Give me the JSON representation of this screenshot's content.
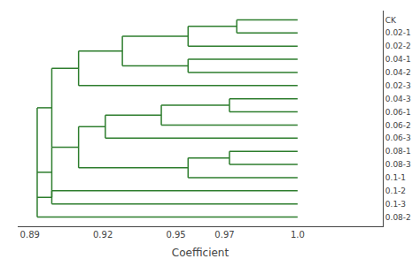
{
  "chart_data": {
    "type": "dendrogram",
    "x_label": "Coefficient",
    "color": "#2d7d2d",
    "grid": false,
    "xlim": [
      0.885,
      1.035
    ],
    "xticks": [
      0.89,
      0.92,
      0.95,
      0.97,
      {
        "value": 1.0,
        "label": "1.0"
      }
    ],
    "ylim": [
      0.3,
      16.7
    ],
    "yticks": [
      {
        "value": 16,
        "label": "CK"
      },
      {
        "value": 15,
        "label": "0.02-1"
      },
      {
        "value": 14,
        "label": "0.02-2"
      },
      {
        "value": 13,
        "label": "0.04-1"
      },
      {
        "value": 12,
        "label": "0.04-2"
      },
      {
        "value": 11,
        "label": "0.02-3"
      },
      {
        "value": 10,
        "label": "0.04-3"
      },
      {
        "value": 9,
        "label": "0.06-1"
      },
      {
        "value": 8,
        "label": "0.06-2"
      },
      {
        "value": 7,
        "label": "0.06-3"
      },
      {
        "value": 6,
        "label": "0.08-1"
      },
      {
        "value": 5,
        "label": "0.08-3"
      },
      {
        "value": 4,
        "label": "0.1-1"
      },
      {
        "value": 3,
        "label": "0.1-2"
      },
      {
        "value": 2,
        "label": "0.1-3"
      },
      {
        "value": 1,
        "label": "0.08-2"
      }
    ],
    "segments": [
      {
        "x1": 1.0,
        "y1": 16,
        "x2": 0.975,
        "y2": 16
      },
      {
        "x1": 1.0,
        "y1": 15,
        "x2": 0.975,
        "y2": 15
      },
      {
        "x1": 0.975,
        "y1": 16,
        "x2": 0.975,
        "y2": 15
      },
      {
        "x1": 0.975,
        "y1": 15.5,
        "x2": 0.955,
        "y2": 15.5
      },
      {
        "x1": 1.0,
        "y1": 14,
        "x2": 0.955,
        "y2": 14
      },
      {
        "x1": 0.955,
        "y1": 15.5,
        "x2": 0.955,
        "y2": 14
      },
      {
        "x1": 0.955,
        "y1": 14.75,
        "x2": 0.928,
        "y2": 14.75
      },
      {
        "x1": 1.0,
        "y1": 13,
        "x2": 0.955,
        "y2": 13
      },
      {
        "x1": 1.0,
        "y1": 12,
        "x2": 0.955,
        "y2": 12
      },
      {
        "x1": 0.955,
        "y1": 13,
        "x2": 0.955,
        "y2": 12
      },
      {
        "x1": 0.955,
        "y1": 12.5,
        "x2": 0.928,
        "y2": 12.5
      },
      {
        "x1": 0.928,
        "y1": 14.75,
        "x2": 0.928,
        "y2": 12.5
      },
      {
        "x1": 0.928,
        "y1": 13.625,
        "x2": 0.91,
        "y2": 13.625
      },
      {
        "x1": 1.0,
        "y1": 11,
        "x2": 0.91,
        "y2": 11
      },
      {
        "x1": 0.91,
        "y1": 13.625,
        "x2": 0.91,
        "y2": 11
      },
      {
        "x1": 0.91,
        "y1": 12.3125,
        "x2": 0.899,
        "y2": 12.3125
      },
      {
        "x1": 1.0,
        "y1": 10,
        "x2": 0.972,
        "y2": 10
      },
      {
        "x1": 1.0,
        "y1": 9,
        "x2": 0.972,
        "y2": 9
      },
      {
        "x1": 0.972,
        "y1": 10,
        "x2": 0.972,
        "y2": 9
      },
      {
        "x1": 0.972,
        "y1": 9.5,
        "x2": 0.944,
        "y2": 9.5
      },
      {
        "x1": 1.0,
        "y1": 8,
        "x2": 0.944,
        "y2": 8
      },
      {
        "x1": 0.944,
        "y1": 9.5,
        "x2": 0.944,
        "y2": 8
      },
      {
        "x1": 0.944,
        "y1": 8.75,
        "x2": 0.921,
        "y2": 8.75
      },
      {
        "x1": 1.0,
        "y1": 7,
        "x2": 0.921,
        "y2": 7
      },
      {
        "x1": 0.921,
        "y1": 8.75,
        "x2": 0.921,
        "y2": 7
      },
      {
        "x1": 0.921,
        "y1": 7.875,
        "x2": 0.91,
        "y2": 7.875
      },
      {
        "x1": 1.0,
        "y1": 6,
        "x2": 0.972,
        "y2": 6
      },
      {
        "x1": 1.0,
        "y1": 5,
        "x2": 0.972,
        "y2": 5
      },
      {
        "x1": 0.972,
        "y1": 6,
        "x2": 0.972,
        "y2": 5
      },
      {
        "x1": 0.972,
        "y1": 5.5,
        "x2": 0.955,
        "y2": 5.5
      },
      {
        "x1": 1.0,
        "y1": 4,
        "x2": 0.955,
        "y2": 4
      },
      {
        "x1": 0.955,
        "y1": 5.5,
        "x2": 0.955,
        "y2": 4
      },
      {
        "x1": 0.955,
        "y1": 4.75,
        "x2": 0.91,
        "y2": 4.75
      },
      {
        "x1": 0.91,
        "y1": 7.875,
        "x2": 0.91,
        "y2": 4.75
      },
      {
        "x1": 0.91,
        "y1": 6.3125,
        "x2": 0.899,
        "y2": 6.3125
      },
      {
        "x1": 1.0,
        "y1": 3,
        "x2": 0.899,
        "y2": 3
      },
      {
        "x1": 1.0,
        "y1": 2,
        "x2": 0.899,
        "y2": 2
      },
      {
        "x1": 0.899,
        "y1": 3,
        "x2": 0.899,
        "y2": 2
      },
      {
        "x1": 0.899,
        "y1": 2.5,
        "x2": 0.893,
        "y2": 2.5
      },
      {
        "x1": 0.899,
        "y1": 12.3125,
        "x2": 0.899,
        "y2": 6.3125
      },
      {
        "x1": 0.899,
        "y1": 9.3125,
        "x2": 0.893,
        "y2": 9.3125
      },
      {
        "x1": 0.899,
        "y1": 6.3125,
        "x2": 0.899,
        "y2": 2.5
      },
      {
        "x1": 0.899,
        "y1": 4.40625,
        "x2": 0.893,
        "y2": 4.40625
      },
      {
        "x1": 1.0,
        "y1": 1,
        "x2": 0.893,
        "y2": 1
      },
      {
        "x1": 0.893,
        "y1": 9.3125,
        "x2": 0.893,
        "y2": 4.40625
      },
      {
        "x1": 0.893,
        "y1": 4.40625,
        "x2": 0.893,
        "y2": 1
      }
    ]
  }
}
